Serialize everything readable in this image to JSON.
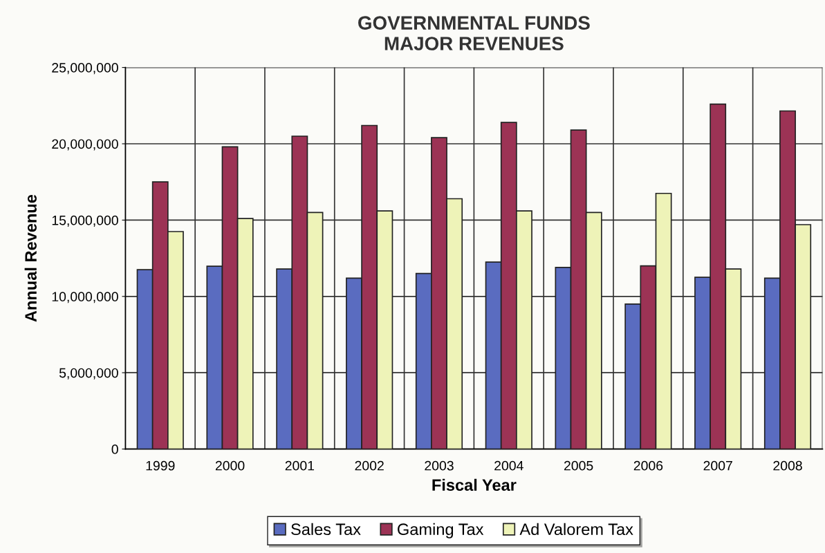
{
  "chart_data": {
    "type": "bar",
    "title": "GOVERNMENTAL FUNDS\nMAJOR REVENUES",
    "xlabel": "Fiscal Year",
    "ylabel": "Annual Revenue",
    "categories": [
      "1999",
      "2000",
      "2001",
      "2002",
      "2003",
      "2004",
      "2005",
      "2006",
      "2007",
      "2008"
    ],
    "series": [
      {
        "name": "Sales Tax",
        "color": "#5a6cc0",
        "values": [
          11750000,
          11980000,
          11800000,
          11200000,
          11500000,
          12250000,
          11900000,
          9500000,
          11250000,
          11200000
        ]
      },
      {
        "name": "Gaming Tax",
        "color": "#9c3355",
        "values": [
          17500000,
          19800000,
          20500000,
          21200000,
          20400000,
          21400000,
          20900000,
          12000000,
          22600000,
          22150000
        ]
      },
      {
        "name": "Ad Valorem Tax",
        "color": "#eef3b8",
        "values": [
          14250000,
          15100000,
          15500000,
          15600000,
          16400000,
          15600000,
          15500000,
          16750000,
          11800000,
          14700000
        ]
      }
    ],
    "ylim": [
      0,
      25000000
    ],
    "yticks": [
      {
        "value": 0,
        "label": "0"
      },
      {
        "value": 5000000,
        "label": "5,000,000"
      },
      {
        "value": 10000000,
        "label": "10,000,000"
      },
      {
        "value": 15000000,
        "label": "15,000,000"
      },
      {
        "value": 20000000,
        "label": "20,000,000"
      },
      {
        "value": 25000000,
        "label": "25,000,000"
      }
    ],
    "grid": true,
    "legend": "bottom"
  }
}
